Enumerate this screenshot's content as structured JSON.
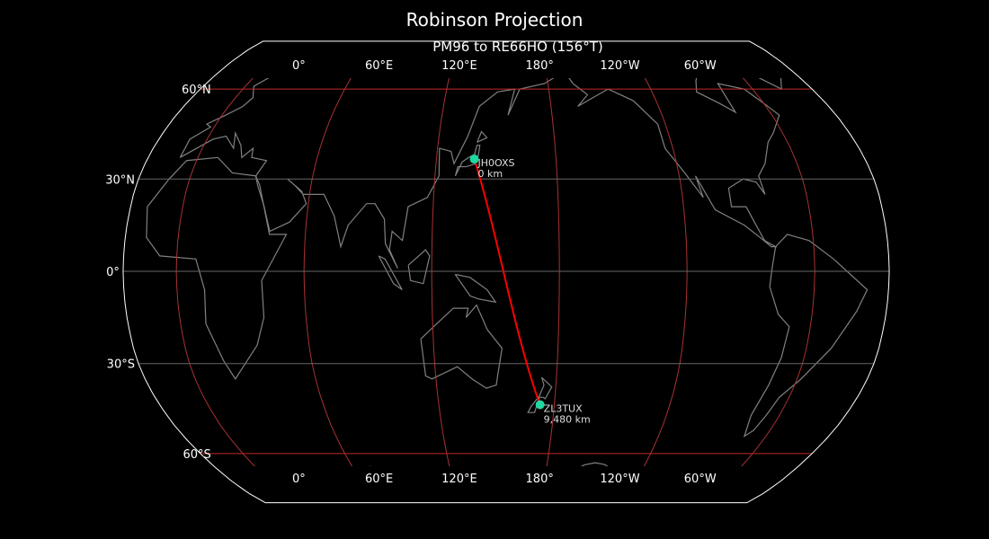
{
  "title": "Robinson Projection",
  "subtitle": "PM96 to RE66HO (156°T)",
  "projection": {
    "type": "robinson",
    "central_longitude": 155
  },
  "colors": {
    "background": "#000000",
    "coastline": "#808080",
    "meridian": "#a83232",
    "parallel_60": "#c02828",
    "parallel_minor": "#666666",
    "path": "#ff0000",
    "station": "#1ed8a0",
    "border": "#ffffff"
  },
  "meridians": [
    {
      "lon": 0,
      "label": "0°"
    },
    {
      "lon": 60,
      "label": "60°E"
    },
    {
      "lon": 120,
      "label": "120°E"
    },
    {
      "lon": 180,
      "label": "180°"
    },
    {
      "lon": -120,
      "label": "120°W"
    },
    {
      "lon": -60,
      "label": "60°W"
    }
  ],
  "parallels": [
    {
      "lat": 60,
      "label": "60°N"
    },
    {
      "lat": 30,
      "label": "30°N"
    },
    {
      "lat": 0,
      "label": "0°"
    },
    {
      "lat": -30,
      "label": "30°S"
    },
    {
      "lat": -60,
      "label": "60°S"
    }
  ],
  "stations": [
    {
      "call": "JH0OXS",
      "distance": "0 km",
      "lat": 36.5,
      "lon": 139
    },
    {
      "call": "ZL3TUX",
      "distance": "9,480 km",
      "lat": -43.42,
      "lon": 172.6
    }
  ]
}
